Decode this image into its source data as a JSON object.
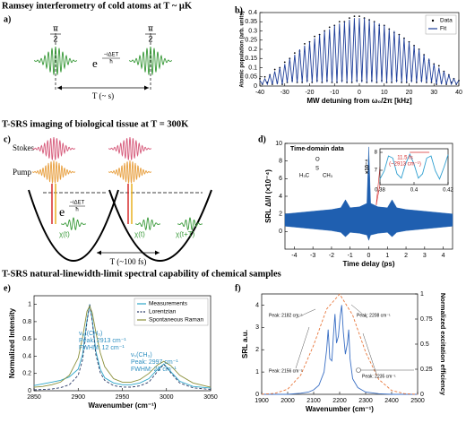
{
  "headings": [
    "Ramsey interferometry of cold atoms at T ~ μK",
    "T-SRS imaging of biological tissue at T = 300K",
    "T-SRS natural-linewidth-limit spectral capability of chemical samples"
  ],
  "panel_labels": [
    "a)",
    "b)",
    "c)",
    "d)",
    "e)",
    "f)"
  ],
  "diagram_a": {
    "pulses": [
      {
        "numerator": "π",
        "denominator": "2"
      },
      {
        "numerator": "π",
        "denominator": "2"
      }
    ],
    "phase_base": "e",
    "phase_exponent": "−iΔET",
    "phase_denominator": "ħ",
    "interval": "T (~ s)"
  },
  "diagram_c": {
    "stokes": "Stokes",
    "pump": "Pump",
    "phase_base": "e",
    "phase_exponent": "−iΔET",
    "phase_denominator": "ħ",
    "chi_labels": [
      "χ(t)",
      "χ(t)",
      "χ(t+T)"
    ],
    "interval": "T (~100 fs)"
  },
  "chart_data": [
    {
      "type": "line",
      "xlabel": "MW detuning from ω₀/2π [kHz]",
      "ylabel": "Atomic population (arb. units)",
      "xlim": [
        -40,
        40
      ],
      "xticks": [
        -40,
        -30,
        -20,
        -10,
        0,
        10,
        20,
        30,
        40
      ],
      "ylim": [
        0,
        0.4
      ],
      "yticks": [
        0,
        0.05,
        0.1,
        0.15,
        0.2,
        0.25,
        0.3,
        0.35,
        0.4
      ],
      "legend": "upper right",
      "x": [
        -40,
        -39,
        -38,
        -37,
        -36,
        -35,
        -34,
        -33,
        -32,
        -31,
        -30,
        -29,
        -28,
        -27,
        -26,
        -25,
        -24,
        -23,
        -22,
        -21,
        -20,
        -19,
        -18,
        -17,
        -16,
        -15,
        -14,
        -13,
        -12,
        -11,
        -10,
        -9,
        -8,
        -7,
        -6,
        -5,
        -4,
        -3,
        -2,
        -1,
        0,
        1,
        2,
        3,
        4,
        5,
        6,
        7,
        8,
        9,
        10,
        11,
        12,
        13,
        14,
        15,
        16,
        17,
        18,
        19,
        20,
        21,
        22,
        23,
        24,
        25,
        26,
        27,
        28,
        29,
        30,
        31,
        32,
        33,
        34,
        35,
        36,
        37,
        38,
        39,
        40
      ],
      "series": [
        {
          "name": "Data",
          "color": "#000000",
          "marker": true,
          "line": false,
          "values": [
            0.04,
            0.01,
            0.05,
            0.02,
            0.06,
            0.01,
            0.09,
            0.02,
            0.1,
            0.01,
            0.13,
            0.02,
            0.15,
            0.03,
            0.18,
            0.02,
            0.19,
            0.02,
            0.23,
            0.03,
            0.24,
            0.02,
            0.27,
            0.03,
            0.28,
            0.02,
            0.3,
            0.03,
            0.32,
            0.02,
            0.33,
            0.02,
            0.35,
            0.03,
            0.35,
            0.02,
            0.37,
            0.02,
            0.38,
            0.03,
            0.38,
            0.03,
            0.37,
            0.02,
            0.36,
            0.03,
            0.35,
            0.02,
            0.33,
            0.03,
            0.33,
            0.02,
            0.31,
            0.02,
            0.29,
            0.03,
            0.28,
            0.02,
            0.26,
            0.02,
            0.24,
            0.03,
            0.22,
            0.02,
            0.2,
            0.03,
            0.17,
            0.02,
            0.14,
            0.02,
            0.12,
            0.01,
            0.11,
            0.02,
            0.08,
            0.01,
            0.06,
            0.02,
            0.04,
            0.01,
            0.03
          ]
        },
        {
          "name": "Fit",
          "color": "#1f3f9a",
          "marker": false,
          "line": true,
          "values": [
            0.03,
            0.01,
            0.04,
            0.01,
            0.06,
            0.01,
            0.08,
            0.01,
            0.1,
            0.01,
            0.12,
            0.02,
            0.15,
            0.02,
            0.17,
            0.02,
            0.2,
            0.02,
            0.22,
            0.02,
            0.24,
            0.02,
            0.26,
            0.02,
            0.28,
            0.02,
            0.3,
            0.02,
            0.31,
            0.02,
            0.33,
            0.02,
            0.34,
            0.02,
            0.35,
            0.02,
            0.36,
            0.02,
            0.37,
            0.02,
            0.37,
            0.02,
            0.37,
            0.02,
            0.36,
            0.02,
            0.35,
            0.02,
            0.34,
            0.02,
            0.33,
            0.02,
            0.31,
            0.02,
            0.3,
            0.02,
            0.28,
            0.02,
            0.26,
            0.02,
            0.24,
            0.02,
            0.22,
            0.02,
            0.2,
            0.02,
            0.17,
            0.02,
            0.15,
            0.02,
            0.12,
            0.01,
            0.1,
            0.01,
            0.08,
            0.01,
            0.06,
            0.01,
            0.04,
            0.01,
            0.03
          ]
        }
      ]
    },
    {
      "type": "area",
      "xlabel": "Time delay (ps)",
      "ylabel": "SRL ΔI/I (×10⁻⁴)",
      "xlim": [
        -4.5,
        4.5
      ],
      "xticks": [
        -4,
        -3,
        -2,
        -1,
        0,
        1,
        2,
        3,
        4
      ],
      "ylim": [
        -2,
        10
      ],
      "yticks": [
        0,
        2,
        4,
        6,
        8,
        10
      ],
      "color": "#1f5fb0",
      "annotations": [
        "Time-domain data",
        "O",
        "S",
        "H₃C",
        "CH₃"
      ],
      "x": [
        -4.5,
        -4,
        -3.5,
        -3,
        -2.5,
        -2,
        -1.5,
        -1.25,
        -1,
        -0.5,
        -0.1,
        0,
        0.1,
        0.5,
        1,
        1.25,
        1.5,
        2,
        2.5,
        3,
        3.5,
        4,
        4.5
      ],
      "values": [
        2.0,
        2.1,
        2.2,
        2.3,
        2.4,
        2.5,
        2.7,
        3.6,
        2.7,
        2.8,
        3.2,
        9.6,
        3.2,
        2.8,
        2.7,
        3.6,
        2.7,
        2.5,
        2.4,
        2.3,
        2.2,
        2.1,
        2.0
      ],
      "lower": [
        0.6,
        0.5,
        0.4,
        0.3,
        0.2,
        0.1,
        -0.1,
        -0.6,
        -0.1,
        -0.2,
        -0.4,
        -1.0,
        -0.4,
        -0.2,
        -0.1,
        -0.6,
        -0.1,
        0.1,
        0.2,
        0.3,
        0.4,
        0.5,
        0.6
      ],
      "inset": {
        "ylabel": "×10⁻⁴",
        "xlim": [
          0.38,
          0.42
        ],
        "xticks": [
          0.38,
          0.4,
          0.42
        ],
        "ylim": [
          6.2,
          8.2
        ],
        "yticks": [
          7,
          8
        ],
        "color": "#2f9fd0",
        "annotations": [
          "11.5 fs",
          "(~2913 cm⁻¹)"
        ],
        "x": [
          0.38,
          0.3825,
          0.385,
          0.3875,
          0.39,
          0.3925,
          0.395,
          0.3975,
          0.4,
          0.4025,
          0.405,
          0.4075,
          0.41,
          0.4125,
          0.415,
          0.4175,
          0.42
        ],
        "values": [
          6.51,
          6.97,
          7.8,
          7.68,
          6.8,
          6.56,
          7.34,
          7.9,
          7.34,
          6.56,
          6.8,
          7.68,
          7.8,
          6.97,
          6.51,
          7.15,
          7.87
        ]
      }
    },
    {
      "type": "line",
      "xlabel": "Wavenumber (cm⁻¹)",
      "ylabel": "Normalized Intensity",
      "xlim": [
        2850,
        3050
      ],
      "xticks": [
        2850,
        2900,
        2950,
        3000,
        3050
      ],
      "ylim": [
        0,
        1.1
      ],
      "yticks": [
        0,
        0.2,
        0.4,
        0.6,
        0.8,
        1
      ],
      "legend": "upper right",
      "annotations": [
        "νₐₛ(CH₃)",
        "Peak: 2913 cm⁻¹",
        "FWHM: 12 cm⁻¹",
        "νₛ(CH₃)",
        "Peak: 2997 cm⁻¹",
        "FWHM: 23 cm⁻¹"
      ],
      "x": [
        2850,
        2860,
        2870,
        2880,
        2890,
        2900,
        2905,
        2910,
        2913,
        2916,
        2920,
        2925,
        2930,
        2940,
        2950,
        2960,
        2970,
        2980,
        2990,
        2997,
        3005,
        3015,
        3030,
        3050
      ],
      "series": [
        {
          "name": "Measurements",
          "color": "#2ea7c9",
          "line": true,
          "values": [
            0.06,
            0.08,
            0.1,
            0.12,
            0.16,
            0.25,
            0.42,
            0.82,
            1.0,
            0.82,
            0.46,
            0.25,
            0.15,
            0.09,
            0.07,
            0.07,
            0.09,
            0.14,
            0.25,
            0.31,
            0.22,
            0.11,
            0.05,
            0.03
          ]
        },
        {
          "name": "Lorentzian",
          "color": "#2b3a67",
          "line": true,
          "dashed": true,
          "values": [
            0.011,
            0.015,
            0.02,
            0.035,
            0.07,
            0.18,
            0.36,
            0.8,
            1.0,
            0.8,
            0.42,
            0.21,
            0.12,
            0.059,
            0.043,
            0.042,
            0.057,
            0.1,
            0.225,
            0.305,
            0.206,
            0.09,
            0.034,
            0.015
          ]
        },
        {
          "name": "Spontaneous Raman",
          "color": "#8a8f3a",
          "line": true,
          "values": [
            0.04,
            0.05,
            0.07,
            0.1,
            0.18,
            0.38,
            0.62,
            0.92,
            0.98,
            0.9,
            0.68,
            0.44,
            0.28,
            0.14,
            0.1,
            0.1,
            0.13,
            0.2,
            0.3,
            0.34,
            0.29,
            0.18,
            0.09,
            0.04
          ]
        }
      ]
    },
    {
      "type": "line",
      "xlabel": "Wavenumber (cm⁻¹)",
      "ylabel": "SRL a.u.",
      "y2label": "Normalized excitation efficiency",
      "xlim": [
        1900,
        2500
      ],
      "xticks": [
        1900,
        2000,
        2100,
        2200,
        2300,
        2400,
        2500
      ],
      "ylim": [
        0,
        4.5
      ],
      "yticks": [
        0,
        1,
        2,
        3,
        4
      ],
      "y2lim": [
        0,
        1
      ],
      "y2ticks": [
        0,
        0.25,
        0.5,
        0.75,
        1
      ],
      "annotations": [
        "Peak: 2182 cm⁻¹",
        "Peak: 2208 cm⁻¹",
        "Peak: 2156 cm⁻¹",
        "Peak: 2235 cm⁻¹"
      ],
      "series": [
        {
          "color": "#3a6fc4",
          "line": true,
          "x": [
            1900,
            1950,
            2000,
            2050,
            2080,
            2100,
            2120,
            2140,
            2150,
            2156,
            2162,
            2170,
            2176,
            2182,
            2188,
            2195,
            2202,
            2208,
            2214,
            2222,
            2230,
            2235,
            2240,
            2250,
            2270,
            2300,
            2350,
            2400,
            2450,
            2500
          ],
          "values": [
            0,
            0,
            0,
            0.05,
            0.1,
            0.2,
            0.4,
            1.0,
            2.0,
            2.9,
            1.6,
            1.5,
            2.6,
            3.6,
            2.3,
            2.6,
            3.5,
            4.0,
            2.8,
            1.8,
            2.3,
            2.9,
            1.6,
            0.7,
            0.3,
            0.1,
            0.03,
            0,
            0,
            0
          ]
        },
        {
          "color": "#e8763a",
          "line": true,
          "dashed": true,
          "axis": "y2",
          "x": [
            1900,
            1950,
            2000,
            2050,
            2100,
            2150,
            2200,
            2250,
            2300,
            2350,
            2400,
            2450,
            2500
          ],
          "values": [
            0.001,
            0.009,
            0.051,
            0.19,
            0.49,
            0.85,
            0.998,
            0.79,
            0.42,
            0.15,
            0.038,
            0.006,
            0.001
          ]
        }
      ]
    }
  ]
}
